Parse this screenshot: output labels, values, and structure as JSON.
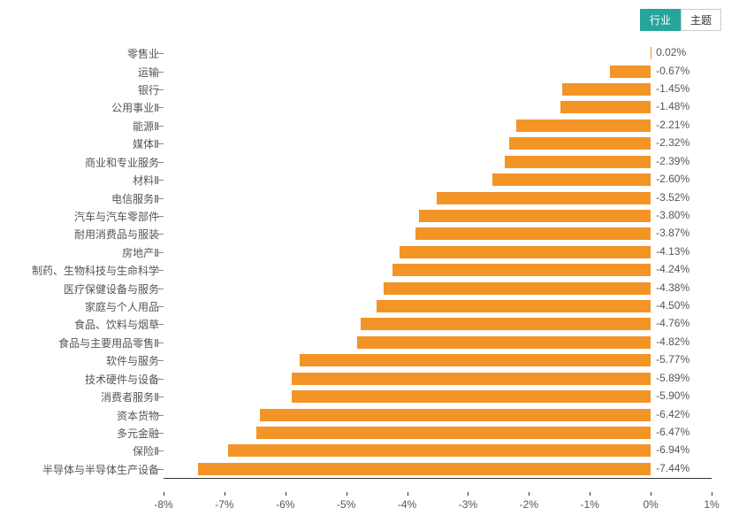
{
  "tabs": {
    "active_label": "行业",
    "inactive_label": "主题"
  },
  "chart": {
    "type": "bar-horizontal",
    "bar_color": "#f39426",
    "background_color": "#ffffff",
    "text_color": "#555555",
    "axis_color": "#333333",
    "label_fontsize": 12,
    "xmin": -8,
    "xmax": 1,
    "xticks": [
      {
        "v": -8,
        "label": "-8%"
      },
      {
        "v": -7,
        "label": "-7%"
      },
      {
        "v": -6,
        "label": "-6%"
      },
      {
        "v": -5,
        "label": "-5%"
      },
      {
        "v": -4,
        "label": "-4%"
      },
      {
        "v": -3,
        "label": "-3%"
      },
      {
        "v": -2,
        "label": "-2%"
      },
      {
        "v": -1,
        "label": "-1%"
      },
      {
        "v": 0,
        "label": "0%"
      },
      {
        "v": 1,
        "label": "1%"
      }
    ],
    "categories": [
      {
        "name": "零售业",
        "value": 0.02,
        "label": "0.02%"
      },
      {
        "name": "运输",
        "value": -0.67,
        "label": "-0.67%"
      },
      {
        "name": "银行",
        "value": -1.45,
        "label": "-1.45%"
      },
      {
        "name": "公用事业Ⅱ",
        "value": -1.48,
        "label": "-1.48%"
      },
      {
        "name": "能源Ⅱ",
        "value": -2.21,
        "label": "-2.21%"
      },
      {
        "name": "媒体Ⅱ",
        "value": -2.32,
        "label": "-2.32%"
      },
      {
        "name": "商业和专业服务",
        "value": -2.39,
        "label": "-2.39%"
      },
      {
        "name": "材料Ⅱ",
        "value": -2.6,
        "label": "-2.60%"
      },
      {
        "name": "电信服务Ⅱ",
        "value": -3.52,
        "label": "-3.52%"
      },
      {
        "name": "汽车与汽车零部件",
        "value": -3.8,
        "label": "-3.80%"
      },
      {
        "name": "耐用消费品与服装",
        "value": -3.87,
        "label": "-3.87%"
      },
      {
        "name": "房地产Ⅱ",
        "value": -4.13,
        "label": "-4.13%"
      },
      {
        "name": "制药、生物科技与生命科学",
        "value": -4.24,
        "label": "-4.24%"
      },
      {
        "name": "医疗保健设备与服务",
        "value": -4.38,
        "label": "-4.38%"
      },
      {
        "name": "家庭与个人用品",
        "value": -4.5,
        "label": "-4.50%"
      },
      {
        "name": "食品、饮料与烟草",
        "value": -4.76,
        "label": "-4.76%"
      },
      {
        "name": "食品与主要用品零售Ⅱ",
        "value": -4.82,
        "label": "-4.82%"
      },
      {
        "name": "软件与服务",
        "value": -5.77,
        "label": "-5.77%"
      },
      {
        "name": "技术硬件与设备",
        "value": -5.89,
        "label": "-5.89%"
      },
      {
        "name": "消费者服务Ⅱ",
        "value": -5.9,
        "label": "-5.90%"
      },
      {
        "name": "资本货物",
        "value": -6.42,
        "label": "-6.42%"
      },
      {
        "name": "多元金融",
        "value": -6.47,
        "label": "-6.47%"
      },
      {
        "name": "保险Ⅱ",
        "value": -6.94,
        "label": "-6.94%"
      },
      {
        "name": "半导体与半导体生产设备",
        "value": -7.44,
        "label": "-7.44%"
      }
    ]
  }
}
